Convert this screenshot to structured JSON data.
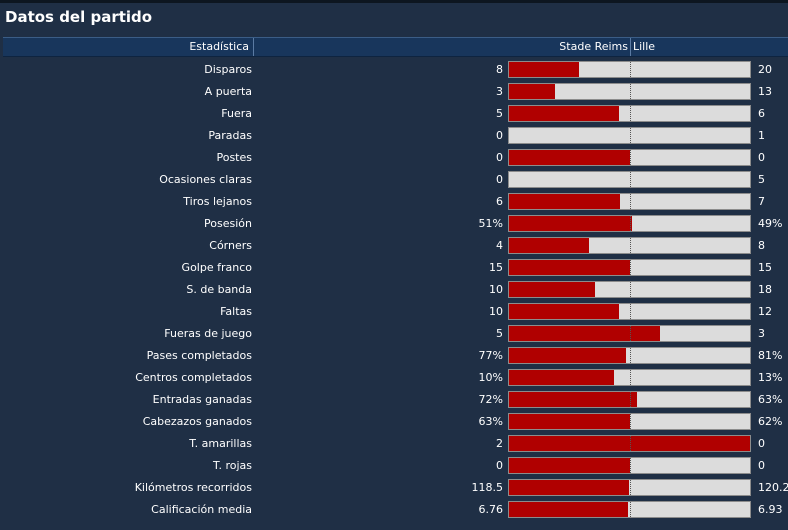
{
  "panel": {
    "title": "Datos del partido",
    "header": {
      "stat": "Estadística",
      "home": "Stade Reims",
      "away": "Lille"
    },
    "colors": {
      "home_bar": "#b00000",
      "away_bar": "#dcdcdc",
      "background": "#1f2f45",
      "header_bg": "#18365c"
    },
    "rows": [
      {
        "label": "Disparos",
        "home": "8",
        "away": "20",
        "home_share": 0.29
      },
      {
        "label": "A puerta",
        "home": "3",
        "away": "13",
        "home_share": 0.19
      },
      {
        "label": "Fuera",
        "home": "5",
        "away": "6",
        "home_share": 0.455
      },
      {
        "label": "Paradas",
        "home": "0",
        "away": "1",
        "home_share": 0.0
      },
      {
        "label": "Postes",
        "home": "0",
        "away": "0",
        "home_share": 0.5
      },
      {
        "label": "Ocasiones claras",
        "home": "0",
        "away": "5",
        "home_share": 0.0
      },
      {
        "label": "Tiros lejanos",
        "home": "6",
        "away": "7",
        "home_share": 0.46
      },
      {
        "label": "Posesión",
        "home": "51%",
        "away": "49%",
        "home_share": 0.51
      },
      {
        "label": "Córners",
        "home": "4",
        "away": "8",
        "home_share": 0.333
      },
      {
        "label": "Golpe franco",
        "home": "15",
        "away": "15",
        "home_share": 0.5
      },
      {
        "label": "S. de banda",
        "home": "10",
        "away": "18",
        "home_share": 0.357
      },
      {
        "label": "Faltas",
        "home": "10",
        "away": "12",
        "home_share": 0.455
      },
      {
        "label": "Fueras de juego",
        "home": "5",
        "away": "3",
        "home_share": 0.625
      },
      {
        "label": "Pases completados",
        "home": "77%",
        "away": "81%",
        "home_share": 0.487
      },
      {
        "label": "Centros completados",
        "home": "10%",
        "away": "13%",
        "home_share": 0.435
      },
      {
        "label": "Entradas ganadas",
        "home": "72%",
        "away": "63%",
        "home_share": 0.533
      },
      {
        "label": "Cabezazos ganados",
        "home": "63%",
        "away": "62%",
        "home_share": 0.504
      },
      {
        "label": "T. amarillas",
        "home": "2",
        "away": "0",
        "home_share": 1.0
      },
      {
        "label": "T. rojas",
        "home": "0",
        "away": "0",
        "home_share": 0.5
      },
      {
        "label": "Kilómetros recorridos",
        "home": "118.5",
        "away": "120.2",
        "home_share": 0.496
      },
      {
        "label": "Calificación media",
        "home": "6.76",
        "away": "6.93",
        "home_share": 0.494
      }
    ]
  }
}
